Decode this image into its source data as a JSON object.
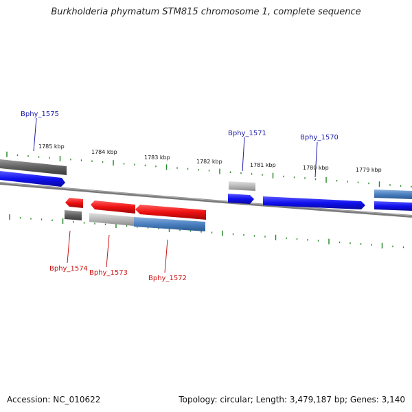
{
  "title": "Burkholderia phymatum STM815 chromosome 1, complete sequence",
  "accession": "Accession: NC_010622",
  "topology": "Topology: circular; Length: 3,479,187 bp; Genes: 3,140",
  "scale_labels": [
    "1785 kbp",
    "1784 kbp",
    "1783 kbp",
    "1782 kbp",
    "1781 kbp",
    "1780 kbp",
    "1779 kbp"
  ],
  "gene_labels": {
    "upper": [
      "Bphy_1575",
      "Bphy_1571",
      "Bphy_1570"
    ],
    "lower": [
      "Bphy_1574",
      "Bphy_1573",
      "Bphy_1572"
    ]
  },
  "colors": {
    "forward_cds": "#1010ee",
    "reverse_cds": "#ee1010",
    "forward_gene": "#4a7fc0",
    "gene_gray": "#606060",
    "gene_light": "#b8b8b8",
    "tick": "#2a8a2a",
    "backbone": "#777777",
    "label_upper": "#1a1aa8",
    "label_lower": "#cc1111"
  }
}
